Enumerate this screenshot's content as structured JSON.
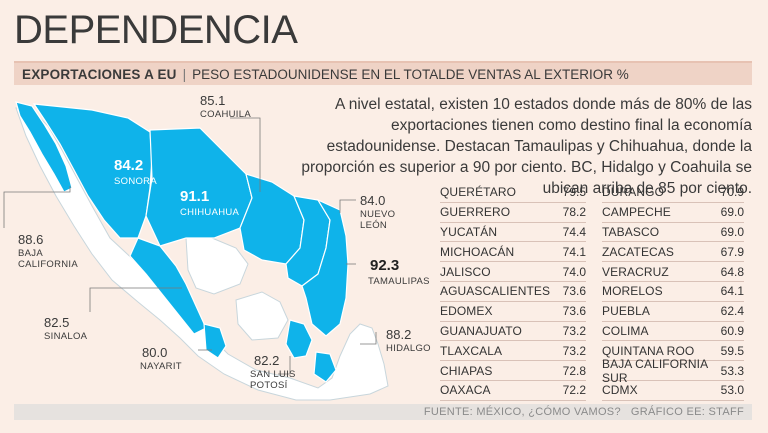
{
  "header": {
    "title": "DEPENDENCIA",
    "subtitle_bold": "EXPORTACIONES A EU",
    "subtitle_sep": "|",
    "subtitle_rest": "PESO ESTADOUNIDENSE EN EL TOTALDE VENTAS AL EXTERIOR %"
  },
  "intro": "A nivel estatal, existen 10 estados donde más de 80% de las exportaciones tienen como destino final la economía estadounidense. Destacan Tamaulipas y Chihuahua, donde la proporción es superior a 90 por ciento. BC, Hidalgo y Coahuila se ubican arriba de 85 por ciento.",
  "colors": {
    "highlight": "#0fb3ea",
    "base": "#ffffff",
    "background": "#fbeee6"
  },
  "map_labels": [
    {
      "id": "coahuila",
      "value": "85.1",
      "name": "COAHUILA"
    },
    {
      "id": "sonora",
      "value": "84.2",
      "name": "SONORA"
    },
    {
      "id": "chihuahua",
      "value": "91.1",
      "name": "CHIHUAHUA"
    },
    {
      "id": "nuevo-leon",
      "value": "84.0",
      "name": "NUEVO LEÓN"
    },
    {
      "id": "baja-california",
      "value": "88.6",
      "name": "BAJA CALIFORNIA"
    },
    {
      "id": "tamaulipas",
      "value": "92.3",
      "name": "TAMAULIPAS"
    },
    {
      "id": "sinaloa",
      "value": "82.5",
      "name": "SINALOA"
    },
    {
      "id": "hidalgo",
      "value": "88.2",
      "name": "HIDALGO"
    },
    {
      "id": "nayarit",
      "value": "80.0",
      "name": "NAYARIT"
    },
    {
      "id": "san-luis-potosi",
      "value": "82.2",
      "name": "SAN LUIS POTOSÍ"
    }
  ],
  "table_left": [
    {
      "name": "QUERÉTARO",
      "value": "79.5"
    },
    {
      "name": "GUERRERO",
      "value": "78.2"
    },
    {
      "name": "YUCATÁN",
      "value": "74.4"
    },
    {
      "name": "MICHOACÁN",
      "value": "74.1"
    },
    {
      "name": "JALISCO",
      "value": "74.0"
    },
    {
      "name": "AGUASCALIENTES",
      "value": "73.6"
    },
    {
      "name": "EDOMEX",
      "value": "73.6"
    },
    {
      "name": "GUANAJUATO",
      "value": "73.2"
    },
    {
      "name": "TLAXCALA",
      "value": "73.2"
    },
    {
      "name": "CHIAPAS",
      "value": "72.8"
    },
    {
      "name": "OAXACA",
      "value": "72.2"
    }
  ],
  "table_right": [
    {
      "name": "DURANGO",
      "value": "70.9"
    },
    {
      "name": "CAMPECHE",
      "value": "69.0"
    },
    {
      "name": "TABASCO",
      "value": "69.0"
    },
    {
      "name": "ZACATECAS",
      "value": "67.9"
    },
    {
      "name": "VERACRUZ",
      "value": "64.8"
    },
    {
      "name": "MORELOS",
      "value": "64.1"
    },
    {
      "name": "PUEBLA",
      "value": "62.4"
    },
    {
      "name": "COLIMA",
      "value": "60.9"
    },
    {
      "name": "QUINTANA ROO",
      "value": "59.5"
    },
    {
      "name": "BAJA CALIFORNIA SUR",
      "value": "53.3"
    },
    {
      "name": "CDMX",
      "value": "53.0"
    }
  ],
  "footer": "FUENTE: MÉXICO, ¿CÓMO VAMOS?   GRÁFICO EE: STAFF"
}
